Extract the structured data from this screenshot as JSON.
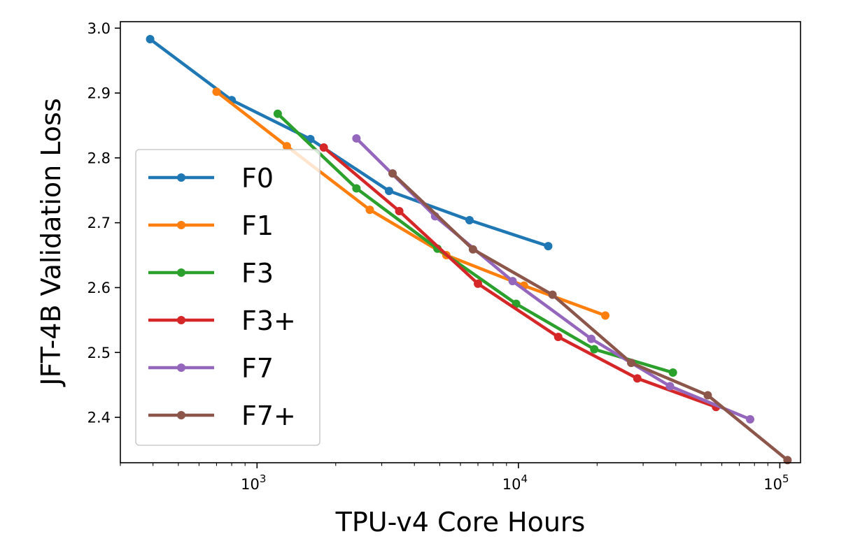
{
  "chart_data": {
    "type": "line",
    "xlabel": "TPU-v4 Core Hours",
    "ylabel": "JFT-4B Validation Loss",
    "xscale": "log",
    "xlim": [
      300,
      120000
    ],
    "ylim": [
      2.33,
      3.01
    ],
    "x_ticks": [
      {
        "value": 1000,
        "base": "10",
        "exp": "3"
      },
      {
        "value": 10000,
        "base": "10",
        "exp": "4"
      },
      {
        "value": 100000,
        "base": "10",
        "exp": "5"
      }
    ],
    "y_ticks": [
      "2.4",
      "2.5",
      "2.6",
      "2.7",
      "2.8",
      "2.9",
      "3.0"
    ],
    "grid": false,
    "legend_position": "lower-left",
    "series": [
      {
        "name": "F0",
        "color": "#1f77b4",
        "points": [
          [
            390,
            2.983
          ],
          [
            800,
            2.889
          ],
          [
            1600,
            2.829
          ],
          [
            3200,
            2.749
          ],
          [
            6500,
            2.704
          ],
          [
            13000,
            2.664
          ]
        ]
      },
      {
        "name": "F1",
        "color": "#ff7f0e",
        "points": [
          [
            700,
            2.902
          ],
          [
            1300,
            2.818
          ],
          [
            2700,
            2.72
          ],
          [
            5300,
            2.65
          ],
          [
            10500,
            2.603
          ],
          [
            21500,
            2.557
          ]
        ]
      },
      {
        "name": "F3",
        "color": "#2ca02c",
        "points": [
          [
            1200,
            2.868
          ],
          [
            2400,
            2.753
          ],
          [
            4900,
            2.66
          ],
          [
            9800,
            2.575
          ],
          [
            19500,
            2.505
          ],
          [
            39000,
            2.469
          ]
        ]
      },
      {
        "name": "F3+",
        "color": "#d62728",
        "points": [
          [
            1800,
            2.816
          ],
          [
            3500,
            2.718
          ],
          [
            7000,
            2.606
          ],
          [
            14200,
            2.524
          ],
          [
            28500,
            2.46
          ],
          [
            57000,
            2.416
          ]
        ]
      },
      {
        "name": "F7",
        "color": "#9467bd",
        "points": [
          [
            2400,
            2.83
          ],
          [
            4800,
            2.71
          ],
          [
            9500,
            2.61
          ],
          [
            19000,
            2.521
          ],
          [
            38000,
            2.448
          ],
          [
            77000,
            2.397
          ]
        ]
      },
      {
        "name": "F7+",
        "color": "#8c564b",
        "points": [
          [
            3300,
            2.776
          ],
          [
            6700,
            2.659
          ],
          [
            13500,
            2.589
          ],
          [
            27000,
            2.484
          ],
          [
            53000,
            2.434
          ],
          [
            107000,
            2.334
          ]
        ]
      }
    ]
  }
}
